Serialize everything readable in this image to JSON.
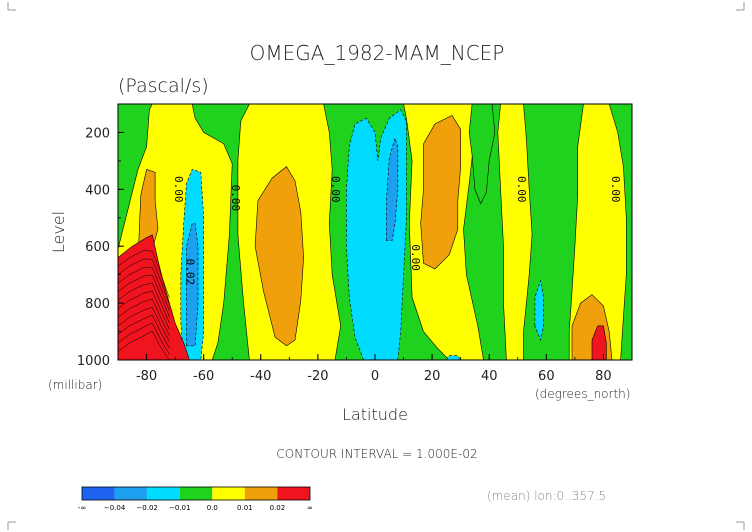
{
  "chart_data": {
    "type": "heatmap",
    "title": "OMEGA_1982-MAM_NCEP",
    "subtitle": "(Pascal/s)",
    "xlabel": "Latitude",
    "ylabel": "Level",
    "x_units": "(degrees_north)",
    "y_units": "(millibar)",
    "xlim": [
      -90,
      90
    ],
    "ylim": [
      1000,
      100
    ],
    "x_ticks": [
      "-80",
      "-60",
      "-40",
      "-20",
      "0",
      "20",
      "40",
      "60",
      "80"
    ],
    "x_tick_values": [
      -80,
      -60,
      -40,
      -20,
      0,
      20,
      40,
      60,
      80
    ],
    "y_ticks": [
      "200",
      "400",
      "600",
      "800",
      "1000"
    ],
    "y_tick_values": [
      200,
      400,
      600,
      800,
      1000
    ],
    "contour_interval_text": "CONTOUR INTERVAL = 1.000E-02",
    "mean_text": "(mean) lon:0..357.5",
    "contour_labels": [
      {
        "text": "0.00",
        "lat": -70,
        "lev": 400
      },
      {
        "text": "0.00",
        "lat": -50,
        "lev": 430
      },
      {
        "text": "0.02",
        "lat": -66,
        "lev": 690
      },
      {
        "text": "0.00",
        "lat": -15,
        "lev": 400
      },
      {
        "text": "0.00",
        "lat": 13,
        "lev": 640
      },
      {
        "text": "0.00",
        "lat": 50,
        "lev": 400
      },
      {
        "text": "0.00",
        "lat": 83,
        "lev": 400
      }
    ],
    "colorbar": {
      "colors": [
        "#1e64f0",
        "#1ea0f0",
        "#00dcff",
        "#1ed21e",
        "#ffff00",
        "#f0a00a",
        "#f0141e"
      ],
      "labels": [
        "-∞",
        "−0.04",
        "−0.02",
        "−0.01",
        "0.0",
        "0.01",
        "0.02",
        "∞"
      ]
    },
    "regions": [
      {
        "color": "#1ed21e",
        "points": [
          [
            -90,
            100
          ],
          [
            90,
            100
          ],
          [
            90,
            1000
          ],
          [
            -90,
            1000
          ]
        ]
      },
      {
        "color": "#ffff00",
        "points": [
          [
            -90,
            1000
          ],
          [
            -90,
            610
          ],
          [
            -83,
            330
          ],
          [
            -80,
            250
          ],
          [
            -79,
            120
          ],
          [
            -78,
            100
          ],
          [
            -64,
            100
          ],
          [
            -63,
            150
          ],
          [
            -60,
            200
          ],
          [
            -53,
            240
          ],
          [
            -50,
            310
          ],
          [
            -51,
            560
          ],
          [
            -53,
            800
          ],
          [
            -55,
            940
          ],
          [
            -57,
            1000
          ]
        ]
      },
      {
        "color": "#f0a00a",
        "points": [
          [
            -83,
            650
          ],
          [
            -82,
            420
          ],
          [
            -80,
            330
          ],
          [
            -77,
            340
          ],
          [
            -77,
            440
          ],
          [
            -76,
            540
          ],
          [
            -78,
            610
          ],
          [
            -81,
            640
          ]
        ]
      },
      {
        "color": "#ffff00",
        "points": [
          [
            -44,
            100
          ],
          [
            -18,
            100
          ],
          [
            -16,
            200
          ],
          [
            -15,
            330
          ],
          [
            -16,
            520
          ],
          [
            -15,
            700
          ],
          [
            -12,
            880
          ],
          [
            -14,
            1000
          ],
          [
            -44,
            1000
          ],
          [
            -46,
            800
          ],
          [
            -48,
            560
          ],
          [
            -48,
            300
          ],
          [
            -47,
            160
          ]
        ]
      },
      {
        "color": "#f0a00a",
        "points": [
          [
            -39,
            760
          ],
          [
            -42,
            600
          ],
          [
            -41,
            440
          ],
          [
            -36,
            360
          ],
          [
            -31,
            320
          ],
          [
            -28,
            370
          ],
          [
            -26,
            480
          ],
          [
            -25,
            640
          ],
          [
            -26,
            790
          ],
          [
            -28,
            930
          ],
          [
            -31,
            950
          ],
          [
            -35,
            920
          ]
        ]
      },
      {
        "color": "#ffff00",
        "points": [
          [
            10,
            100
          ],
          [
            34,
            100
          ],
          [
            35,
            130
          ],
          [
            35,
            200
          ],
          [
            33,
            380
          ],
          [
            31,
            540
          ],
          [
            32,
            700
          ],
          [
            36,
            880
          ],
          [
            38,
            1000
          ],
          [
            26,
            1000
          ],
          [
            22,
            960
          ],
          [
            17,
            900
          ],
          [
            13,
            780
          ],
          [
            12,
            520
          ],
          [
            13,
            300
          ],
          [
            11,
            150
          ]
        ]
      },
      {
        "color": "#f0a00a",
        "points": [
          [
            17,
            660
          ],
          [
            16,
            520
          ],
          [
            17,
            400
          ],
          [
            17,
            240
          ],
          [
            21,
            170
          ],
          [
            27,
            140
          ],
          [
            30,
            190
          ],
          [
            30,
            320
          ],
          [
            29,
            440
          ],
          [
            29,
            540
          ],
          [
            26,
            630
          ],
          [
            21,
            680
          ]
        ]
      },
      {
        "color": "#1ed21e",
        "points": [
          [
            34,
            100
          ],
          [
            41,
            100
          ],
          [
            42,
            200
          ],
          [
            40,
            300
          ],
          [
            39,
            410
          ],
          [
            37,
            450
          ],
          [
            35,
            400
          ],
          [
            34,
            280
          ],
          [
            33,
            200
          ]
        ]
      },
      {
        "color": "#ffff00",
        "points": [
          [
            44,
            100
          ],
          [
            52,
            100
          ],
          [
            53,
            220
          ],
          [
            54,
            400
          ],
          [
            55,
            560
          ],
          [
            54,
            700
          ],
          [
            52,
            900
          ],
          [
            52,
            1000
          ],
          [
            46,
            1000
          ],
          [
            45,
            800
          ],
          [
            45,
            600
          ],
          [
            44,
            400
          ],
          [
            43,
            200
          ]
        ]
      },
      {
        "color": "#ffff00",
        "points": [
          [
            73,
            100
          ],
          [
            82,
            100
          ],
          [
            85,
            200
          ],
          [
            87,
            320
          ],
          [
            88,
            500
          ],
          [
            88,
            700
          ],
          [
            87,
            850
          ],
          [
            86,
            1000
          ],
          [
            68,
            1000
          ],
          [
            68,
            900
          ],
          [
            69,
            760
          ],
          [
            70,
            600
          ],
          [
            71,
            420
          ],
          [
            71,
            250
          ]
        ]
      },
      {
        "color": "#f0a00a",
        "points": [
          [
            69,
            1000
          ],
          [
            69,
            880
          ],
          [
            72,
            800
          ],
          [
            76,
            770
          ],
          [
            80,
            810
          ],
          [
            82,
            900
          ],
          [
            83,
            1000
          ]
        ]
      },
      {
        "color": "#f0141e",
        "points": [
          [
            76,
            1000
          ],
          [
            76,
            930
          ],
          [
            78,
            880
          ],
          [
            80,
            880
          ],
          [
            81,
            940
          ],
          [
            81,
            1000
          ]
        ]
      },
      {
        "color": "#00dcff",
        "points": [
          [
            -67,
            1000
          ],
          [
            -68,
            870
          ],
          [
            -68,
            700
          ],
          [
            -67,
            520
          ],
          [
            -66,
            380
          ],
          [
            -64,
            330
          ],
          [
            -61,
            340
          ],
          [
            -60,
            500
          ],
          [
            -60,
            700
          ],
          [
            -60,
            900
          ],
          [
            -61,
            1000
          ]
        ]
      },
      {
        "color": "#1ea0f0",
        "points": [
          [
            -66,
            950
          ],
          [
            -66,
            800
          ],
          [
            -66,
            600
          ],
          [
            -64,
            520
          ],
          [
            -63,
            520
          ],
          [
            -62,
            600
          ],
          [
            -62,
            800
          ],
          [
            -63,
            950
          ]
        ]
      },
      {
        "color": "#00dcff",
        "points": [
          [
            -4,
            1000
          ],
          [
            -7,
            920
          ],
          [
            -9,
            780
          ],
          [
            -10,
            600
          ],
          [
            -10,
            400
          ],
          [
            -9,
            250
          ],
          [
            -7,
            170
          ],
          [
            -3,
            150
          ],
          [
            0,
            200
          ],
          [
            1,
            300
          ],
          [
            2,
            220
          ],
          [
            5,
            150
          ],
          [
            9,
            120
          ],
          [
            11,
            160
          ],
          [
            11,
            300
          ],
          [
            11,
            500
          ],
          [
            10,
            700
          ],
          [
            9,
            900
          ],
          [
            8,
            1000
          ]
        ]
      },
      {
        "color": "#1ea0f0",
        "points": [
          [
            4,
            580
          ],
          [
            4,
            440
          ],
          [
            5,
            290
          ],
          [
            7,
            220
          ],
          [
            8,
            250
          ],
          [
            8,
            400
          ],
          [
            7,
            520
          ],
          [
            6,
            580
          ]
        ]
      },
      {
        "color": "#00dcff",
        "points": [
          [
            56,
            880
          ],
          [
            56,
            780
          ],
          [
            58,
            720
          ],
          [
            59,
            780
          ],
          [
            59,
            880
          ],
          [
            58,
            930
          ]
        ]
      },
      {
        "color": "#00dcff",
        "points": [
          [
            25,
            1000
          ],
          [
            26,
            985
          ],
          [
            29,
            985
          ],
          [
            30,
            1000
          ]
        ]
      },
      {
        "color": "#f0141e",
        "points": [
          [
            -90,
            1000
          ],
          [
            -90,
            640
          ],
          [
            -85,
            600
          ],
          [
            -80,
            570
          ],
          [
            -78,
            560
          ],
          [
            -76,
            650
          ],
          [
            -74,
            730
          ],
          [
            -72,
            800
          ],
          [
            -70,
            870
          ],
          [
            -67,
            940
          ],
          [
            -65,
            1000
          ]
        ]
      }
    ]
  }
}
